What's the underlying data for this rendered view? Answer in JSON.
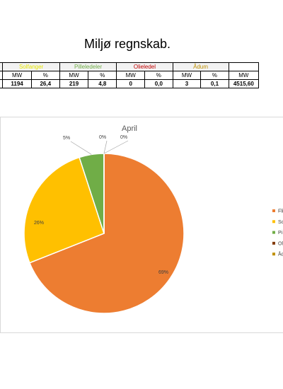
{
  "header": {
    "title": "Miljø regnskab."
  },
  "table": {
    "groups": [
      "Solfanger",
      "Pilleledeler",
      "Olieledel",
      "Ådum"
    ],
    "subheader": [
      "MW",
      "%",
      "MW",
      "%",
      "MW",
      "%",
      "MW",
      "%",
      "MW"
    ],
    "rows": [
      [
        "1194",
        "26,4",
        "219",
        "4,8",
        "0",
        "0,0",
        "3",
        "0,1",
        "4515,60"
      ]
    ]
  },
  "chart_data": {
    "type": "pie",
    "title": "April",
    "categories": [
      "Fli",
      "So",
      "Pi",
      "Ol",
      "Åd"
    ],
    "values": [
      69,
      26,
      5,
      0,
      0
    ],
    "value_labels": [
      "69%",
      "26%",
      "5%",
      "0%",
      "0%"
    ],
    "colors": [
      "#ED7D31",
      "#FFC000",
      "#70AD47",
      "#843C0C",
      "#BF9000"
    ]
  }
}
